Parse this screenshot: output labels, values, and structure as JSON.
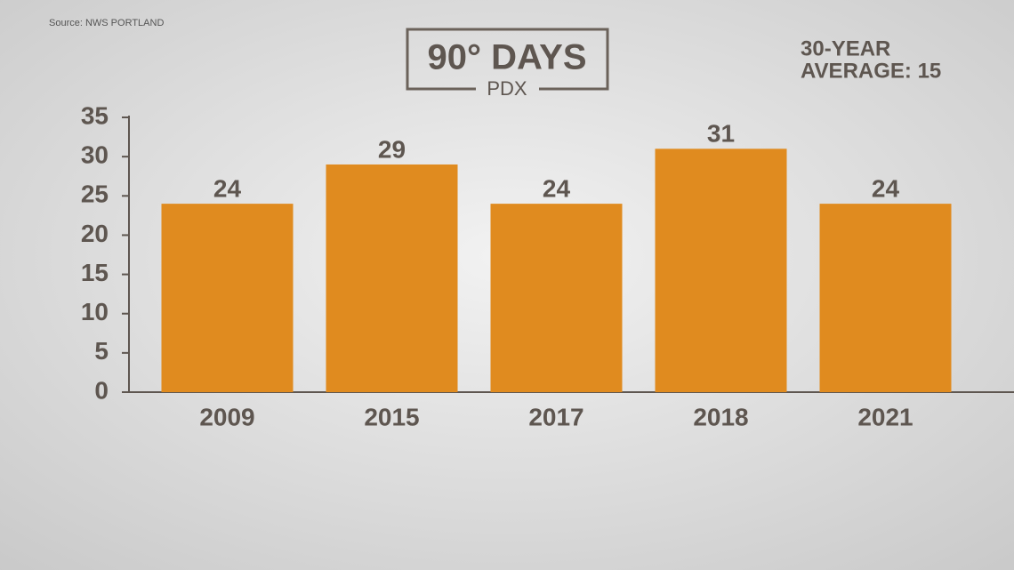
{
  "chart_data": {
    "type": "bar",
    "title": "90° DAYS",
    "subtitle": "PDX",
    "source": "Source: NWS PORTLAND",
    "annotation": [
      "30-YEAR",
      "AVERAGE: 15"
    ],
    "categories": [
      "2009",
      "2015",
      "2017",
      "2018",
      "2021"
    ],
    "values": [
      24,
      29,
      24,
      31,
      24
    ],
    "color": "#e08b1f",
    "ylim": [
      0,
      35
    ],
    "yticks": [
      0,
      5,
      10,
      15,
      20,
      25,
      30,
      35
    ],
    "grid": false
  }
}
